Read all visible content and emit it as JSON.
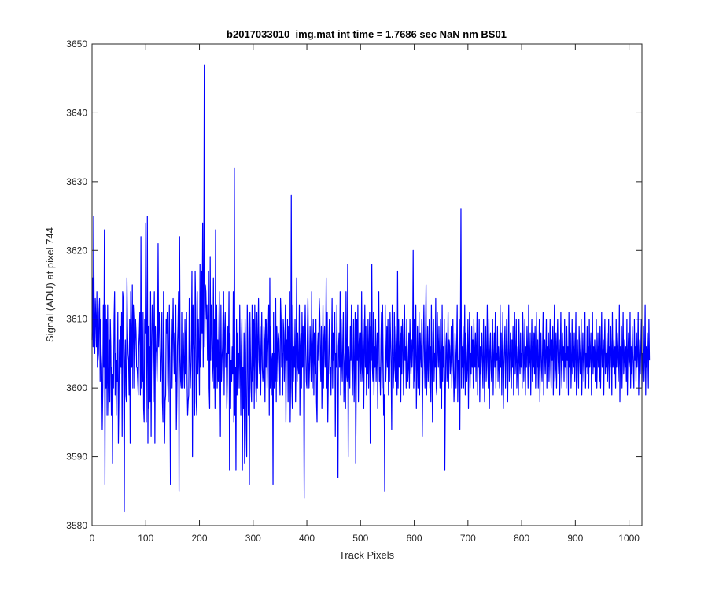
{
  "chart_data": {
    "type": "line",
    "title": "b2017033010_img.mat int time = 1.7686 sec  NaN nm BS01",
    "xlabel": "Track Pixels",
    "ylabel": "Signal (ADU) at pixel 744",
    "xlim": [
      0,
      1024
    ],
    "ylim": [
      3580,
      3650
    ],
    "xticks": [
      0,
      100,
      200,
      300,
      400,
      500,
      600,
      700,
      800,
      900,
      1000
    ],
    "yticks": [
      3580,
      3590,
      3600,
      3610,
      3620,
      3630,
      3640,
      3650
    ],
    "grid": false,
    "legend": "none",
    "series": [
      {
        "color": "#0000ff",
        "x_start": 0,
        "x_step": 1,
        "values": [
          3607,
          3616,
          3606,
          3625,
          3610,
          3605,
          3613,
          3610,
          3606,
          3614,
          3603,
          3604,
          3605,
          3611,
          3613,
          3601,
          3610,
          3605,
          3603,
          3594,
          3600,
          3612,
          3603,
          3623,
          3586,
          3612,
          3600,
          3610,
          3596,
          3612,
          3601,
          3596,
          3607,
          3598,
          3610,
          3606,
          3596,
          3603,
          3589,
          3602,
          3600,
          3610,
          3614,
          3599,
          3605,
          3596,
          3604,
          3601,
          3611,
          3592,
          3598,
          3607,
          3602,
          3609,
          3603,
          3611,
          3593,
          3614,
          3613,
          3600,
          3582,
          3604,
          3607,
          3599,
          3598,
          3616,
          3609,
          3605,
          3604,
          3599,
          3610,
          3592,
          3614,
          3607,
          3603,
          3615,
          3600,
          3612,
          3610,
          3600,
          3606,
          3610,
          3608,
          3603,
          3603,
          3601,
          3599,
          3606,
          3608,
          3611,
          3599,
          3622,
          3600,
          3604,
          3601,
          3611,
          3597,
          3595,
          3610,
          3608,
          3624,
          3595,
          3605,
          3625,
          3592,
          3609,
          3597,
          3606,
          3598,
          3614,
          3593,
          3606,
          3612,
          3611,
          3598,
          3608,
          3614,
          3592,
          3609,
          3606,
          3605,
          3601,
          3606,
          3621,
          3606,
          3611,
          3610,
          3603,
          3601,
          3606,
          3611,
          3598,
          3595,
          3614,
          3608,
          3592,
          3598,
          3599,
          3610,
          3608,
          3611,
          3601,
          3598,
          3606,
          3612,
          3599,
          3586,
          3604,
          3610,
          3600,
          3607,
          3613,
          3606,
          3602,
          3608,
          3601,
          3612,
          3594,
          3599,
          3606,
          3609,
          3614,
          3585,
          3622,
          3605,
          3601,
          3600,
          3611,
          3600,
          3603,
          3608,
          3603,
          3600,
          3610,
          3602,
          3608,
          3611,
          3601,
          3596,
          3598,
          3599,
          3613,
          3605,
          3600,
          3603,
          3607,
          3617,
          3590,
          3612,
          3608,
          3605,
          3596,
          3617,
          3612,
          3598,
          3596,
          3614,
          3602,
          3610,
          3605,
          3599,
          3618,
          3603,
          3606,
          3617,
          3608,
          3624,
          3603,
          3615,
          3647,
          3606,
          3615,
          3614,
          3610,
          3612,
          3604,
          3610,
          3617,
          3600,
          3597,
          3619,
          3604,
          3612,
          3610,
          3601,
          3603,
          3616,
          3600,
          3610,
          3597,
          3623,
          3603,
          3612,
          3600,
          3607,
          3601,
          3608,
          3614,
          3604,
          3593,
          3612,
          3601,
          3604,
          3606,
          3611,
          3614,
          3599,
          3608,
          3611,
          3603,
          3605,
          3597,
          3601,
          3609,
          3605,
          3614,
          3588,
          3608,
          3597,
          3604,
          3601,
          3606,
          3602,
          3614,
          3595,
          3632,
          3596,
          3603,
          3588,
          3610,
          3599,
          3608,
          3603,
          3605,
          3600,
          3612,
          3604,
          3596,
          3606,
          3610,
          3588,
          3603,
          3597,
          3608,
          3589,
          3610,
          3605,
          3594,
          3590,
          3612,
          3607,
          3596,
          3600,
          3586,
          3611,
          3605,
          3600,
          3598,
          3612,
          3601,
          3604,
          3610,
          3597,
          3612,
          3606,
          3600,
          3598,
          3611,
          3600,
          3607,
          3613,
          3604,
          3602,
          3609,
          3599,
          3605,
          3611,
          3603,
          3601,
          3602,
          3609,
          3607,
          3598,
          3610,
          3603,
          3610,
          3600,
          3605,
          3608,
          3612,
          3596,
          3616,
          3600,
          3609,
          3599,
          3604,
          3605,
          3586,
          3611,
          3600,
          3605,
          3601,
          3613,
          3598,
          3609,
          3606,
          3601,
          3608,
          3607,
          3603,
          3599,
          3613,
          3610,
          3603,
          3605,
          3599,
          3610,
          3608,
          3601,
          3606,
          3612,
          3595,
          3607,
          3604,
          3610,
          3598,
          3609,
          3604,
          3614,
          3595,
          3602,
          3628,
          3600,
          3597,
          3612,
          3601,
          3606,
          3603,
          3610,
          3598,
          3605,
          3616,
          3601,
          3608,
          3603,
          3602,
          3612,
          3596,
          3606,
          3608,
          3600,
          3611,
          3603,
          3609,
          3602,
          3584,
          3607,
          3612,
          3605,
          3601,
          3600,
          3608,
          3613,
          3605,
          3600,
          3603,
          3609,
          3605,
          3601,
          3614,
          3600,
          3605,
          3610,
          3599,
          3608,
          3604,
          3602,
          3610,
          3598,
          3595,
          3606,
          3608,
          3604,
          3613,
          3611,
          3605,
          3601,
          3609,
          3597,
          3603,
          3612,
          3600,
          3607,
          3609,
          3603,
          3605,
          3616,
          3600,
          3611,
          3595,
          3601,
          3606,
          3610,
          3602,
          3603,
          3599,
          3605,
          3613,
          3600,
          3608,
          3604,
          3606,
          3611,
          3593,
          3605,
          3603,
          3612,
          3600,
          3587,
          3606,
          3608,
          3603,
          3614,
          3599,
          3610,
          3604,
          3601,
          3607,
          3611,
          3598,
          3603,
          3605,
          3597,
          3614,
          3602,
          3601,
          3618,
          3590,
          3606,
          3603,
          3600,
          3609,
          3604,
          3612,
          3603,
          3599,
          3605,
          3610,
          3598,
          3603,
          3611,
          3589,
          3600,
          3610,
          3604,
          3612,
          3598,
          3606,
          3608,
          3602,
          3608,
          3601,
          3614,
          3603,
          3601,
          3610,
          3597,
          3605,
          3612,
          3603,
          3609,
          3599,
          3605,
          3602,
          3610,
          3600,
          3606,
          3611,
          3592,
          3609,
          3604,
          3618,
          3603,
          3601,
          3611,
          3599,
          3606,
          3603,
          3610,
          3601,
          3605,
          3608,
          3597,
          3609,
          3614,
          3601,
          3603,
          3599,
          3607,
          3611,
          3600,
          3612,
          3605,
          3596,
          3599,
          3585,
          3612,
          3601,
          3604,
          3609,
          3603,
          3610,
          3599,
          3605,
          3601,
          3611,
          3607,
          3603,
          3594,
          3612,
          3608,
          3600,
          3603,
          3611,
          3603,
          3601,
          3609,
          3605,
          3599,
          3617,
          3600,
          3610,
          3603,
          3605,
          3608,
          3598,
          3609,
          3602,
          3610,
          3607,
          3599,
          3603,
          3612,
          3604,
          3606,
          3600,
          3610,
          3605,
          3601,
          3603,
          3608,
          3600,
          3610,
          3605,
          3602,
          3607,
          3603,
          3606,
          3620,
          3600,
          3610,
          3601,
          3606,
          3612,
          3597,
          3603,
          3609,
          3600,
          3605,
          3611,
          3599,
          3608,
          3605,
          3603,
          3610,
          3593,
          3601,
          3607,
          3612,
          3604,
          3600,
          3608,
          3615,
          3599,
          3603,
          3609,
          3601,
          3605,
          3610,
          3600,
          3606,
          3598,
          3612,
          3603,
          3595,
          3608,
          3610,
          3601,
          3605,
          3603,
          3613,
          3600,
          3599,
          3611,
          3606,
          3603,
          3609,
          3604,
          3600,
          3610,
          3605,
          3597,
          3612,
          3601,
          3606,
          3603,
          3610,
          3588,
          3599,
          3606,
          3608,
          3601,
          3603,
          3611,
          3600,
          3607,
          3606,
          3602,
          3604,
          3609,
          3600,
          3605,
          3610,
          3603,
          3598,
          3601,
          3608,
          3605,
          3600,
          3606,
          3612,
          3598,
          3604,
          3603,
          3610,
          3594,
          3608,
          3626,
          3600,
          3606,
          3603,
          3609,
          3600,
          3604,
          3612,
          3599,
          3608,
          3605,
          3601,
          3603,
          3610,
          3597,
          3606,
          3611,
          3600,
          3605,
          3602,
          3609,
          3603,
          3607,
          3600,
          3610,
          3605,
          3603,
          3608,
          3601,
          3606,
          3611,
          3599,
          3604,
          3603,
          3610,
          3598,
          3606,
          3602,
          3605,
          3608,
          3603,
          3600,
          3610,
          3605,
          3598,
          3606,
          3609,
          3601,
          3604,
          3612,
          3603,
          3600,
          3610,
          3597,
          3605,
          3608,
          3603,
          3601,
          3606,
          3610,
          3599,
          3604,
          3608,
          3603,
          3611,
          3600,
          3605,
          3604,
          3609,
          3601,
          3606,
          3603,
          3600,
          3612,
          3603,
          3608,
          3599,
          3605,
          3611,
          3597,
          3603,
          3606,
          3609,
          3600,
          3604,
          3610,
          3605,
          3598,
          3606,
          3612,
          3601,
          3603,
          3608,
          3605,
          3600,
          3607,
          3603,
          3609,
          3599,
          3605,
          3611,
          3602,
          3604,
          3610,
          3600,
          3603,
          3606,
          3599,
          3610,
          3604,
          3602,
          3608,
          3603,
          3605,
          3600,
          3611,
          3607,
          3601,
          3604,
          3610,
          3599,
          3606,
          3603,
          3609,
          3605,
          3600,
          3612,
          3603,
          3604,
          3608,
          3599,
          3605,
          3610,
          3601,
          3606,
          3603,
          3608,
          3602,
          3609,
          3600,
          3605,
          3611,
          3603,
          3607,
          3600,
          3604,
          3610,
          3598,
          3605,
          3608,
          3603,
          3601,
          3606,
          3611,
          3599,
          3604,
          3607,
          3602,
          3605,
          3610,
          3600,
          3606,
          3603,
          3608,
          3601,
          3605,
          3610,
          3603,
          3600,
          3607,
          3604,
          3609,
          3599,
          3605,
          3612,
          3601,
          3603,
          3608,
          3600,
          3606,
          3610,
          3604,
          3602,
          3607,
          3599,
          3605,
          3611,
          3603,
          3600,
          3608,
          3604,
          3606,
          3601,
          3610,
          3603,
          3605,
          3600,
          3609,
          3604,
          3606,
          3599,
          3611,
          3603,
          3605,
          3608,
          3600,
          3604,
          3610,
          3602,
          3606,
          3603,
          3608,
          3601,
          3605,
          3611,
          3599,
          3604,
          3607,
          3603,
          3600,
          3609,
          3605,
          3602,
          3606,
          3610,
          3599,
          3603,
          3608,
          3604,
          3601,
          3606,
          3611,
          3600,
          3605,
          3603,
          3609,
          3602,
          3606,
          3600,
          3610,
          3603,
          3605,
          3608,
          3599,
          3604,
          3611,
          3602,
          3606,
          3603,
          3607,
          3601,
          3605,
          3610,
          3600,
          3604,
          3608,
          3603,
          3606,
          3601,
          3609,
          3600,
          3605,
          3611,
          3603,
          3604,
          3607,
          3599,
          3606,
          3610,
          3602,
          3605,
          3603,
          3608,
          3601,
          3604,
          3610,
          3600,
          3606,
          3603,
          3609,
          3605,
          3599,
          3611,
          3603,
          3604,
          3607,
          3602,
          3606,
          3600,
          3610,
          3603,
          3605,
          3608,
          3601,
          3604,
          3612,
          3598,
          3606,
          3603,
          3609,
          3600,
          3605,
          3611,
          3602,
          3604,
          3607,
          3603,
          3606,
          3601,
          3610,
          3599,
          3605,
          3608,
          3603,
          3604,
          3611,
          3600,
          3606,
          3602,
          3609,
          3605,
          3603,
          3600,
          3610,
          3604,
          3606,
          3601,
          3608,
          3603,
          3605,
          3611,
          3599,
          3604,
          3607,
          3602,
          3606,
          3610,
          3600,
          3605,
          3603,
          3609,
          3601,
          3604,
          3612,
          3599,
          3606,
          3603,
          3608,
          3605,
          3600,
          3610,
          3604
        ]
      }
    ]
  }
}
